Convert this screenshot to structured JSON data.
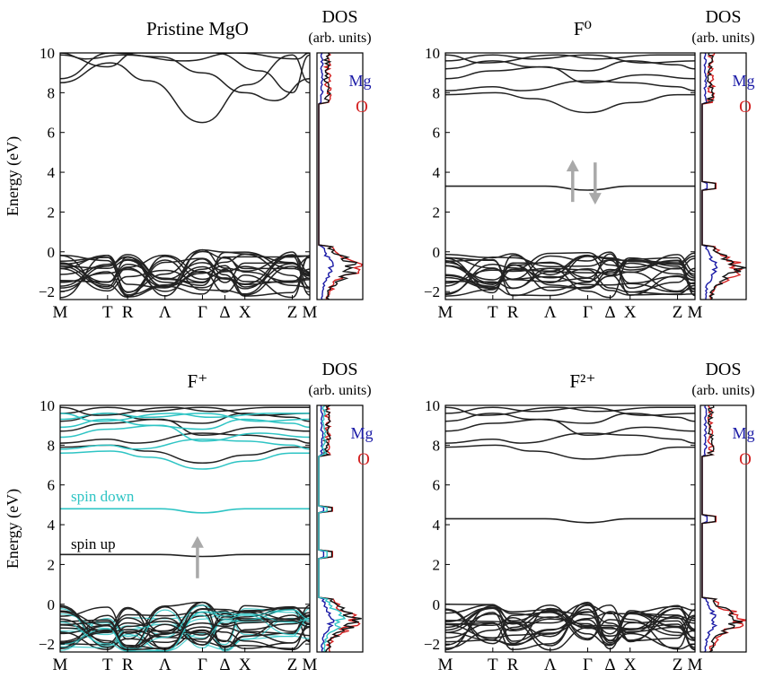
{
  "figure": {
    "y_axis_label": "Energy (eV)",
    "dos_title_line1": "DOS",
    "dos_title_line2": "(arb. units)",
    "mg_label": "Mg",
    "o_label": "O"
  },
  "colors": {
    "band": "#222222",
    "spin_down": "#2ec4c4",
    "mg_dos": "#1a1aa6",
    "o_dos": "#d42020",
    "arrow": "#a9a9a9"
  },
  "chart_data": [
    {
      "type": "line",
      "title": "Pristine MgO",
      "ylabel": "Energy (eV)",
      "ylim": [
        -2.4,
        10
      ],
      "yticks": [
        -2,
        0,
        2,
        4,
        6,
        8,
        10
      ],
      "kpath": [
        "M",
        "T",
        "R",
        "Λ",
        "Γ",
        "Δ",
        "X",
        "Z",
        "M"
      ],
      "kpos": [
        0,
        0.19,
        0.27,
        0.42,
        0.57,
        0.66,
        0.74,
        0.93,
        1
      ],
      "defect_bands": [],
      "dos_peaks": [],
      "legend": {
        "mg": "Mg",
        "o": "O"
      },
      "labels": [],
      "arrows": []
    },
    {
      "type": "line",
      "title": "F⁰",
      "ylabel": "",
      "ylim": [
        -2.4,
        10
      ],
      "yticks": [
        -2,
        0,
        2,
        4,
        6,
        8,
        10
      ],
      "kpath": [
        "M",
        "T",
        "R",
        "Λ",
        "Γ",
        "Δ",
        "X",
        "Z",
        "M"
      ],
      "kpos": [
        0,
        0.19,
        0.27,
        0.42,
        0.57,
        0.66,
        0.74,
        0.93,
        1
      ],
      "defect_bands": [
        {
          "spin": "both",
          "edge": 3.3,
          "center": 3.1
        }
      ],
      "dos_peaks": [
        3.3
      ],
      "legend": {
        "mg": "Mg",
        "o": "O"
      },
      "labels": [],
      "arrows": [
        {
          "direction": "up",
          "y": 3.5
        },
        {
          "direction": "down",
          "y": 3.5
        }
      ]
    },
    {
      "type": "line",
      "title": "F⁺",
      "ylabel": "Energy (eV)",
      "ylim": [
        -2.4,
        10
      ],
      "yticks": [
        -2,
        0,
        2,
        4,
        6,
        8,
        10
      ],
      "kpath": [
        "M",
        "T",
        "R",
        "Λ",
        "Γ",
        "Δ",
        "X",
        "Z",
        "M"
      ],
      "kpos": [
        0,
        0.19,
        0.27,
        0.42,
        0.57,
        0.66,
        0.74,
        0.93,
        1
      ],
      "defect_bands": [
        {
          "spin": "up",
          "edge": 2.5,
          "center": 2.4
        },
        {
          "spin": "down",
          "edge": 4.8,
          "center": 4.6
        }
      ],
      "dos_peaks": [
        2.5,
        4.8
      ],
      "legend": {
        "mg": "Mg",
        "o": "O"
      },
      "labels": [
        {
          "text": "spin down",
          "y": 5.4,
          "spin": "down"
        },
        {
          "text": "spin up",
          "y": 3.0,
          "spin": "up"
        }
      ],
      "arrows": [
        {
          "direction": "up",
          "y": 2.3
        }
      ]
    },
    {
      "type": "line",
      "title": "F²⁺",
      "ylabel": "",
      "ylim": [
        -2.4,
        10
      ],
      "yticks": [
        -2,
        0,
        2,
        4,
        6,
        8,
        10
      ],
      "kpath": [
        "M",
        "T",
        "R",
        "Λ",
        "Γ",
        "Δ",
        "X",
        "Z",
        "M"
      ],
      "kpos": [
        0,
        0.19,
        0.27,
        0.42,
        0.57,
        0.66,
        0.74,
        0.93,
        1
      ],
      "defect_bands": [
        {
          "spin": "both",
          "edge": 4.3,
          "center": 4.1
        }
      ],
      "dos_peaks": [
        4.3
      ],
      "legend": {
        "mg": "Mg",
        "o": "O"
      },
      "labels": [],
      "arrows": []
    }
  ]
}
